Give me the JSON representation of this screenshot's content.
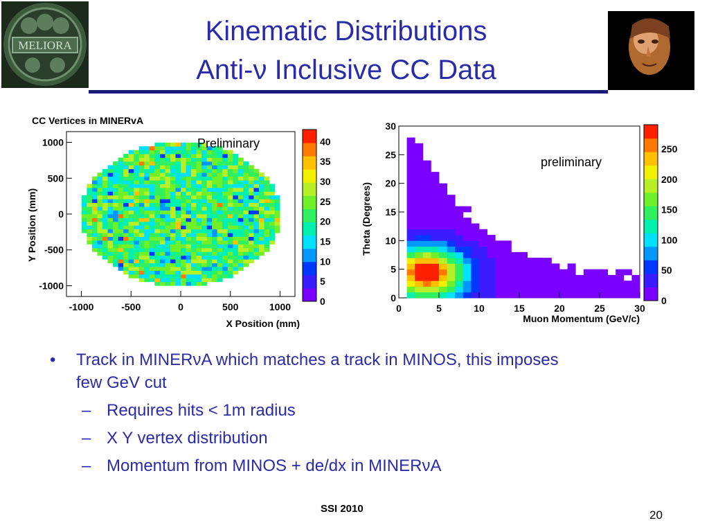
{
  "slide": {
    "title_line1": "Kinematic Distributions",
    "title_line2": "Anti-ν Inclusive CC Data",
    "footer": "SSI 2010",
    "page_number": "20",
    "bullets": [
      {
        "level": 1,
        "text": "Track in MINERνA which matches a track in MINOS, this imposes few GeV cut"
      },
      {
        "level": 2,
        "text": "Requires hits < 1m radius"
      },
      {
        "level": 2,
        "text": "X Y vertex distribution"
      },
      {
        "level": 2,
        "text": "Momentum from MINOS + de/dx in MINERνA"
      }
    ],
    "logo_left_text": "MELIORA"
  },
  "colors": {
    "title": "#2b2ba8",
    "bullet_text": "#2b2ba8",
    "rule": "#1a1a7a",
    "palette": [
      "#7a00ff",
      "#3a1cff",
      "#0037ff",
      "#0098ff",
      "#00e0ff",
      "#00f0b0",
      "#30f060",
      "#70f028",
      "#b8f028",
      "#f0f000",
      "#ffc000",
      "#ff7800",
      "#ff2000"
    ]
  },
  "chart_data": [
    {
      "type": "heatmap",
      "title": "CC Vertices in MINERvA",
      "xlabel": "X Position (mm)",
      "ylabel": "Y Position (mm)",
      "annotation": "Preliminary",
      "xlim": [
        -1150,
        1150
      ],
      "ylim": [
        -1150,
        1150
      ],
      "x_ticks": [
        -1000,
        -500,
        0,
        500,
        1000
      ],
      "y_ticks": [
        -1000,
        -500,
        0,
        500,
        1000
      ],
      "x_tick_labels": [
        "-1000",
        "-500",
        "0",
        "500",
        "1000"
      ],
      "y_tick_labels": [
        "-1000",
        "-500",
        "0",
        "500",
        "1000"
      ],
      "z_range": [
        0,
        43
      ],
      "z_ticks": [
        0,
        5,
        10,
        15,
        20,
        25,
        30,
        35,
        40
      ],
      "z_tick_labels": [
        "0",
        "5",
        "10",
        "15",
        "20",
        "25",
        "30",
        "35",
        "40"
      ],
      "bins_x": 40,
      "bins_y": 40,
      "fiducial_radius_mm": 1000,
      "typical_count": 22,
      "count_range": [
        8,
        38
      ],
      "description_of_values": "approximately uniform counts (about 15-30 per bin) inside a radius of about 1000 mm"
    },
    {
      "type": "heatmap",
      "title": "",
      "xlabel": "Muon Momentum (GeV/c)",
      "ylabel": "Theta (Degrees)",
      "annotation": "preliminary",
      "xlim": [
        0,
        30
      ],
      "ylim": [
        0,
        30
      ],
      "x_ticks": [
        0,
        5,
        10,
        15,
        20,
        25,
        30
      ],
      "y_ticks": [
        0,
        5,
        10,
        15,
        20,
        25,
        30
      ],
      "x_tick_labels": [
        "0",
        "5",
        "10",
        "15",
        "20",
        "25",
        "30"
      ],
      "y_tick_labels": [
        "0",
        "5",
        "10",
        "15",
        "20",
        "25",
        "30"
      ],
      "z_range": [
        0,
        290
      ],
      "z_ticks": [
        0,
        50,
        100,
        150,
        200,
        250
      ],
      "z_tick_labels": [
        "0",
        "50",
        "100",
        "150",
        "200",
        "250"
      ],
      "bins_x": 30,
      "bins_y": 30,
      "peak": {
        "momentum": 3.5,
        "theta": 4.5,
        "count": 280
      },
      "description_of_values": "counts peak near 3-4 GeV/c and 2-7 degrees; theta range falls as momentum increases"
    }
  ]
}
